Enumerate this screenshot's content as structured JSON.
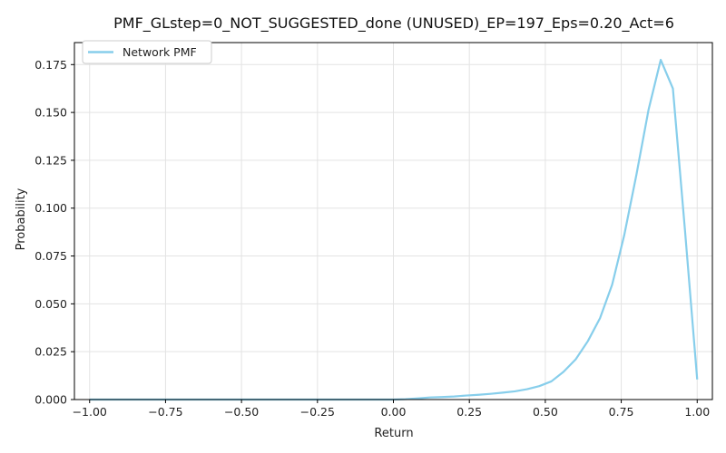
{
  "chart_data": {
    "type": "line",
    "title": "PMF_GLstep=0_NOT_SUGGESTED_done (UNUSED)_EP=197_Eps=0.20_Act=6",
    "xlabel": "Return",
    "ylabel": "Probability",
    "xlim": [
      -1.05,
      1.05
    ],
    "ylim": [
      0,
      0.1865
    ],
    "grid": true,
    "legend_position": "top-left",
    "x_ticks": [
      -1.0,
      -0.75,
      -0.5,
      -0.25,
      0.0,
      0.25,
      0.5,
      0.75,
      1.0
    ],
    "x_tick_labels": [
      "−1.00",
      "−0.75",
      "−0.50",
      "−0.25",
      "0.00",
      "0.25",
      "0.50",
      "0.75",
      "1.00"
    ],
    "y_ticks": [
      0,
      0.025,
      0.05,
      0.075,
      0.1,
      0.125,
      0.15,
      0.175
    ],
    "y_tick_labels": [
      "0.000",
      "0.025",
      "0.050",
      "0.075",
      "0.100",
      "0.125",
      "0.150",
      "0.175"
    ],
    "series": [
      {
        "name": "Network PMF",
        "color": "#87ceeb",
        "x": [
          -1.0,
          -0.9,
          -0.8,
          -0.7,
          -0.6,
          -0.5,
          -0.4,
          -0.3,
          -0.2,
          -0.1,
          0.0,
          0.04,
          0.08,
          0.12,
          0.16,
          0.2,
          0.24,
          0.28,
          0.32,
          0.36,
          0.4,
          0.44,
          0.48,
          0.52,
          0.56,
          0.6,
          0.64,
          0.68,
          0.72,
          0.76,
          0.8,
          0.84,
          0.88,
          0.92,
          0.96,
          1.0
        ],
        "y": [
          0.0,
          0.0,
          0.0,
          0.0,
          0.0,
          0.0,
          0.0,
          0.0,
          0.0,
          0.0,
          0.0,
          0.0002,
          0.0006,
          0.0011,
          0.0013,
          0.0016,
          0.0021,
          0.0025,
          0.003,
          0.0036,
          0.0043,
          0.0054,
          0.007,
          0.0095,
          0.0145,
          0.021,
          0.0305,
          0.0425,
          0.06,
          0.086,
          0.1175,
          0.1515,
          0.1775,
          0.1625,
          0.088,
          0.0105
        ]
      }
    ]
  }
}
